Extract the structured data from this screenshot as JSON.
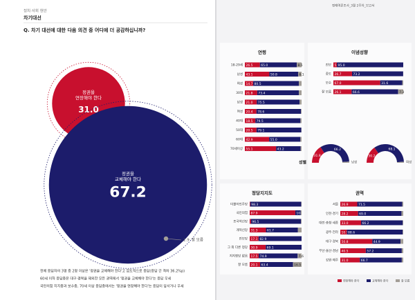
{
  "header": {
    "section": "정치·사회 현안",
    "topic": "차기대선",
    "report": "정례여론조사_3월 2주차_보고서"
  },
  "question": "Q. 차기 대선에 대한 다음 의견 중 어디에 더 공감하십니까?",
  "summary": [
    "전체 응답자의 3명 중 2명 이상은 '정권을 교체해야 한다'고 압도적으로 응답(응답 간 격차 36.2%p)",
    "60세 이하 응답층은 대구·경북을 제외한 모든 권역에서 '정권을 교체해야 한다'는 응답 우세",
    "국민의힘 지지층과 보수층, 70세 이상 응답층에서는 '정권을 연장해야 한다'는 응답이 앞서거나 우세"
  ],
  "chart_data": [
    {
      "type": "bubble",
      "categories": [
        [
          "정권을",
          "연장해야 한다"
        ],
        [
          "정권을",
          "교체해야 한다"
        ],
        [
          "잘 모름"
        ]
      ],
      "values": [
        31.0,
        67.2,
        1.9
      ],
      "value_labels": [
        "31.0",
        "67.2",
        "1.9"
      ],
      "colors": [
        "#c8102e",
        "#1c1c6b",
        "#a39e97"
      ]
    },
    {
      "type": "stacked_bar",
      "title": "연령",
      "xlim": [
        0,
        100
      ],
      "categories": [
        "18-29세",
        "남성",
        "여성",
        "30대",
        "남성",
        "여성",
        "40대",
        "50대",
        "60대",
        "70세이상"
      ],
      "series": [
        {
          "name": "연장해야 한다",
          "color": "#c8102e",
          "values": [
            26.5,
            43.1,
            14.7,
            21.8,
            21.0,
            20.4,
            18.5,
            20.5,
            42.9,
            55.1
          ],
          "value_labels": [
            "26.5",
            "43.1",
            "14.7",
            "21.8",
            "21.0",
            "20.4",
            "18.5",
            "20.5",
            "42.9",
            "55.1"
          ]
        },
        {
          "name": "교체해야 한다",
          "color": "#1c1c6b",
          "values": [
            65.0,
            50.8,
            80.5,
            73.4,
            75.5,
            78.6,
            79.5,
            79.1,
            55.0,
            43.2
          ],
          "value_labels": [
            "65.0",
            "50.8",
            "80.5",
            "73.4",
            "75.5",
            "78.6",
            "79.5",
            "79.1",
            "55.0",
            "43.2"
          ]
        },
        {
          "name": "잘 모름",
          "color": "#a39e97",
          "values": [
            8.5,
            6.1,
            4.8,
            4.8,
            3.5,
            1.0,
            2.0,
            0.4,
            2.1,
            1.7
          ],
          "value_labels": [
            "8.5",
            "6.1",
            null,
            null,
            null,
            null,
            null,
            null,
            null,
            null
          ]
        }
      ]
    },
    {
      "type": "stacked_bar",
      "title": "이념성향",
      "xlim": [
        0,
        100
      ],
      "categories": [
        "진보",
        "중도",
        "보수",
        "잘 모름"
      ],
      "series": [
        {
          "name": "연장해야 한다",
          "color": "#c8102e",
          "values": [
            5.0,
            26.7,
            67.0,
            26.1
          ],
          "value_labels": [
            "5.0",
            "26.7",
            "67.0",
            "26.1"
          ]
        },
        {
          "name": "교체해야 한다",
          "color": "#1c1c6b",
          "values": [
            95.0,
            73.2,
            31.6,
            66.6
          ],
          "value_labels": [
            "95.0",
            "73.2",
            "31.6",
            "66.6"
          ]
        },
        {
          "name": "잘 모름",
          "color": "#a39e97",
          "values": [
            0,
            0.1,
            1.4,
            7.3
          ],
          "value_labels": [
            null,
            null,
            null,
            "7.3"
          ]
        }
      ]
    },
    {
      "type": "half_donut",
      "title": "성별",
      "categories": [
        "남성",
        "여성"
      ],
      "series": [
        {
          "name": "연장해야 한다",
          "color": "#c8102e",
          "values": [
            31.8,
            30.2
          ],
          "value_labels": [
            "31.8",
            "30.2"
          ]
        },
        {
          "name": "교체해야 한다",
          "color": "#1c1c6b",
          "values": [
            66.2,
            68.1
          ],
          "value_labels": [
            "66.2",
            "68.1"
          ]
        },
        {
          "name": "잘 모름",
          "color": "#a39e97",
          "values": [
            2.0,
            1.7
          ],
          "value_labels": [
            null,
            null
          ]
        }
      ]
    },
    {
      "type": "stacked_bar",
      "title": "정당지지도",
      "xlim": [
        0,
        100
      ],
      "categories": [
        "더불어민주당",
        "국민의힘",
        "조국혁신당",
        "개혁신당",
        "진보당",
        "그 외 다른 정당",
        "지지정당 없음",
        "잘 모름"
      ],
      "series": [
        {
          "name": "연장해야 한다",
          "color": "#c8102e",
          "values": [
            1.0,
            87.9,
            2.5,
            31.3,
            17.1,
            30.9,
            17.5,
            20.1
          ],
          "value_labels": [
            null,
            "87.9",
            null,
            "31.3",
            "17.1",
            "30.9",
            "17.5",
            "20.1"
          ]
        },
        {
          "name": "교체해야 한다",
          "color": "#1c1c6b",
          "values": [
            98.3,
            10.4,
            96.5,
            61.7,
            82.9,
            69.1,
            74.9,
            63.4
          ],
          "value_labels": [
            "98.3",
            "10.4",
            "96.5",
            "61.7",
            "82.9",
            "69.1",
            "74.9",
            "63.4"
          ]
        },
        {
          "name": "잘 모름",
          "color": "#a39e97",
          "values": [
            0.7,
            1.7,
            1.0,
            7.0,
            0,
            0,
            7.6,
            16.5
          ],
          "value_labels": [
            null,
            null,
            null,
            null,
            null,
            null,
            "7.6",
            "16.5"
          ]
        }
      ]
    },
    {
      "type": "stacked_bar",
      "title": "권역",
      "xlim": [
        0,
        100
      ],
      "categories": [
        "서울",
        "인천·경기",
        "대전·충청·세종",
        "광주·전라",
        "대구·경북",
        "부산·울산·경남",
        "강원·제주"
      ],
      "series": [
        {
          "name": "연장해야 한다",
          "color": "#c8102e",
          "values": [
            26.9,
            28.2,
            33.0,
            10.5,
            50.8,
            40.5,
            31.0
          ],
          "value_labels": [
            "26.9",
            "28.2",
            "33.0",
            "10.5",
            "50.8",
            "40.5",
            "31.0"
          ]
        },
        {
          "name": "교체해야 한다",
          "color": "#1c1c6b",
          "values": [
            71.5,
            69.0,
            66.2,
            88.6,
            44.9,
            57.2,
            66.7
          ],
          "value_labels": [
            "71.5",
            "69.0",
            "66.2",
            "88.6",
            "44.9",
            "57.2",
            "66.7"
          ]
        },
        {
          "name": "잘 모름",
          "color": "#a39e97",
          "values": [
            1.6,
            2.8,
            0.8,
            0.9,
            4.3,
            2.3,
            2.3
          ],
          "value_labels": [
            null,
            null,
            null,
            null,
            null,
            null,
            null
          ]
        }
      ]
    }
  ]
}
